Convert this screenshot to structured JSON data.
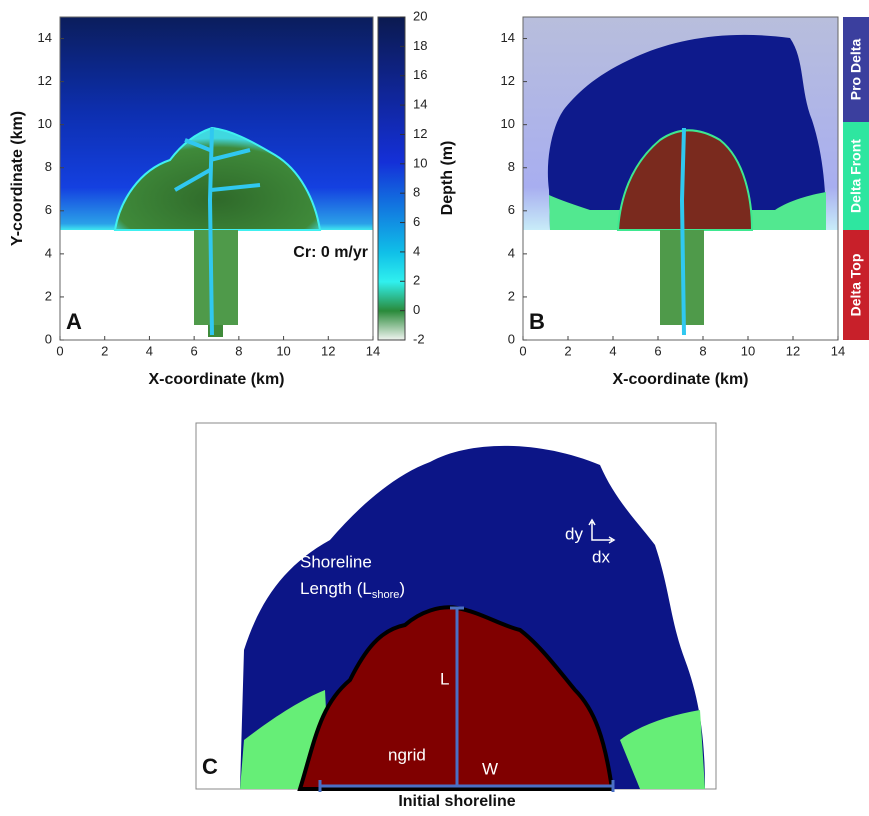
{
  "chart_data": [
    {
      "type": "image",
      "panel": "A",
      "xlabel": "X-coordinate (km)",
      "ylabel": "Y-coordinate (km)",
      "xlim": [
        0,
        14
      ],
      "ylim": [
        0,
        15
      ],
      "xticks": [
        0,
        2,
        4,
        6,
        8,
        10,
        12,
        14
      ],
      "yticks": [
        0,
        2,
        4,
        6,
        8,
        10,
        12,
        14
      ],
      "annotation": "Cr: 0 m/yr",
      "colorbar": {
        "label": "Depth (m)",
        "lim": [
          -2,
          20
        ],
        "ticks": [
          -2,
          0,
          2,
          4,
          6,
          8,
          10,
          12,
          14,
          16,
          18,
          20
        ]
      }
    },
    {
      "type": "image",
      "panel": "B",
      "xlabel": "X-coordinate (km)",
      "xlim": [
        0,
        14
      ],
      "ylim": [
        0,
        15
      ],
      "xticks": [
        0,
        2,
        4,
        6,
        8,
        10,
        12,
        14
      ],
      "yticks": [
        0,
        2,
        4,
        6,
        8,
        10,
        12,
        14
      ],
      "legend": [
        {
          "name": "Pro Delta",
          "color": "#3b3f9e"
        },
        {
          "name": "Delta Front",
          "color": "#2ee6a0"
        },
        {
          "name": "Delta Top",
          "color": "#c8202a"
        }
      ]
    },
    {
      "type": "diagram",
      "panel": "C",
      "shoreline_label": [
        "Shoreline",
        "Length (L",
        "shore",
        ")"
      ],
      "dy": "dy",
      "dx": "dx",
      "L": "L",
      "ngrid": "ngrid",
      "W": "W",
      "caption": "Initial shoreline"
    }
  ]
}
